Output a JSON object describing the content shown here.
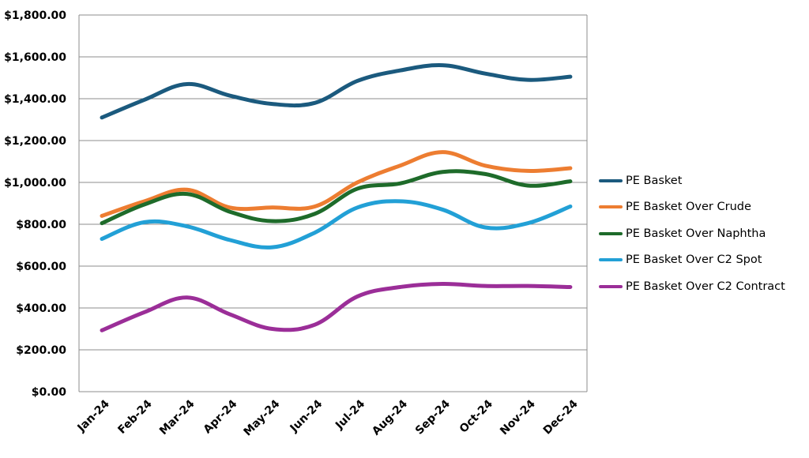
{
  "chart_data": {
    "type": "line",
    "categories": [
      "Jan-24",
      "Feb-24",
      "Mar-24",
      "Apr-24",
      "May-24",
      "Jun-24",
      "Jul-24",
      "Aug-24",
      "Sep-24",
      "Oct-24",
      "Nov-24",
      "Dec-24"
    ],
    "ylim": [
      0,
      1800
    ],
    "yticks": [
      "$0.00",
      "$200.00",
      "$400.00",
      "$600.00",
      "$800.00",
      "$1,000.00",
      "$1,200.00",
      "$1,400.00",
      "$1,600.00",
      "$1,800.00"
    ],
    "ytick_values": [
      0,
      200,
      400,
      600,
      800,
      1000,
      1200,
      1400,
      1600,
      1800
    ],
    "grid": true,
    "legend_position": "right",
    "series": [
      {
        "name": "PE Basket",
        "color": "#1b5a7e",
        "values": [
          1310,
          1395,
          1470,
          1415,
          1375,
          1380,
          1485,
          1535,
          1560,
          1520,
          1490,
          1505
        ]
      },
      {
        "name": "PE Basket Over Crude",
        "color": "#ed7d31",
        "values": [
          840,
          910,
          965,
          880,
          880,
          885,
          1000,
          1080,
          1145,
          1080,
          1055,
          1068
        ]
      },
      {
        "name": "PE Basket Over Naphtha",
        "color": "#1e6b2a",
        "values": [
          805,
          895,
          945,
          860,
          815,
          850,
          970,
          995,
          1050,
          1040,
          985,
          1005
        ]
      },
      {
        "name": "PE Basket Over C2 Spot",
        "color": "#22a0d6",
        "values": [
          730,
          810,
          790,
          725,
          690,
          760,
          880,
          910,
          870,
          785,
          805,
          885
        ]
      },
      {
        "name": "PE Basket Over C2 Contract",
        "color": "#9b2e98",
        "values": [
          293,
          380,
          450,
          370,
          300,
          320,
          455,
          500,
          515,
          505,
          505,
          500
        ]
      }
    ]
  }
}
